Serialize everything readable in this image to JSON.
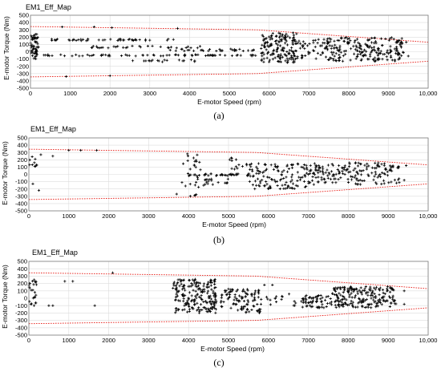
{
  "chart_data": [
    {
      "type": "scatter",
      "title": "EM1_Eff_Map",
      "caption": "(a)",
      "xlabel": "E-motor Speed (rpm)",
      "ylabel": "E-motor Torque (Nm)",
      "xlim": [
        0,
        10000
      ],
      "ylim": [
        -500,
        500
      ],
      "x_ticks": [
        "0",
        "1000",
        "2000",
        "3000",
        "4000",
        "5000",
        "6000",
        "7000",
        "8000",
        "9000",
        "10,000"
      ],
      "y_ticks": [
        "500",
        "400",
        "300",
        "200",
        "100",
        "0",
        "-100",
        "-200",
        "-300",
        "-400",
        "-500"
      ],
      "grid": true,
      "boundary": {
        "x": [
          0,
          5700,
          10000
        ],
        "upper": [
          345,
          300,
          130
        ],
        "lower": [
          -345,
          -300,
          -130
        ],
        "color": "#e8201a"
      },
      "clusters": [
        {
          "x": [
            0,
            200
          ],
          "y": [
            -100,
            240
          ],
          "n": 60
        },
        {
          "x": [
            200,
            3700
          ],
          "y": [
            150,
            175
          ],
          "n": 45
        },
        {
          "x": [
            200,
            5700
          ],
          "y": [
            -60,
            -40
          ],
          "n": 70
        },
        {
          "x": [
            1500,
            4500
          ],
          "y": [
            50,
            80
          ],
          "n": 30
        },
        {
          "x": [
            2300,
            4200
          ],
          "y": [
            -140,
            -110
          ],
          "n": 18
        },
        {
          "x": [
            3500,
            5700
          ],
          "y": [
            10,
            40
          ],
          "n": 30
        },
        {
          "x": [
            5800,
            6700
          ],
          "y": [
            -150,
            260
          ],
          "n": 160
        },
        {
          "x": [
            6700,
            7400
          ],
          "y": [
            -100,
            180
          ],
          "n": 40
        },
        {
          "x": [
            7400,
            9400
          ],
          "y": [
            -130,
            200
          ],
          "n": 220
        }
      ],
      "points": [
        [
          800,
          340
        ],
        [
          1600,
          340
        ],
        [
          2050,
          330
        ],
        [
          3700,
          320
        ],
        [
          900,
          -340
        ],
        [
          2000,
          -330
        ],
        [
          9450,
          130
        ],
        [
          9500,
          -60
        ]
      ]
    },
    {
      "type": "scatter",
      "title": "EM1_Eff_Map",
      "caption": "(b)",
      "xlabel": "E-motor Speed (rpm)",
      "ylabel": "E-motor Torque (Nm)",
      "xlim": [
        0,
        10000
      ],
      "ylim": [
        -500,
        500
      ],
      "x_ticks": [
        "0",
        "1000",
        "2000",
        "3000",
        "4000",
        "5000",
        "6000",
        "7000",
        "8000",
        "9000",
        "10,000"
      ],
      "y_ticks": [
        "500",
        "400",
        "300",
        "200",
        "100",
        "0",
        "-100",
        "-200",
        "-300",
        "-400",
        "-500"
      ],
      "grid": true,
      "boundary": {
        "x": [
          0,
          5700,
          10000
        ],
        "upper": [
          345,
          300,
          130
        ],
        "lower": [
          -345,
          -300,
          -130
        ],
        "color": "#e8201a"
      },
      "clusters": [
        {
          "x": [
            0,
            200
          ],
          "y": [
            100,
            260
          ],
          "n": 10
        },
        {
          "x": [
            3800,
            4300
          ],
          "y": [
            -300,
            340
          ],
          "n": 30
        },
        {
          "x": [
            4000,
            5500
          ],
          "y": [
            -20,
            10
          ],
          "n": 35
        },
        {
          "x": [
            4300,
            5000
          ],
          "y": [
            -150,
            -50
          ],
          "n": 18
        },
        {
          "x": [
            5000,
            5600
          ],
          "y": [
            60,
            250
          ],
          "n": 15
        },
        {
          "x": [
            5500,
            7000
          ],
          "y": [
            -200,
            150
          ],
          "n": 120
        },
        {
          "x": [
            7000,
            9300
          ],
          "y": [
            -140,
            160
          ],
          "n": 180
        }
      ],
      "points": [
        [
          300,
          270
        ],
        [
          600,
          250
        ],
        [
          1000,
          330
        ],
        [
          1300,
          330
        ],
        [
          1700,
          330
        ],
        [
          100,
          -130
        ],
        [
          250,
          -220
        ],
        [
          3700,
          -270
        ],
        [
          9450,
          120
        ],
        [
          9400,
          -80
        ]
      ]
    },
    {
      "type": "scatter",
      "title": "EM1_Eff_Map",
      "caption": "(c)",
      "xlabel": "E-motor Speed (rpm)",
      "ylabel": "E-motor Torque (Nm)",
      "xlim": [
        0,
        10000
      ],
      "ylim": [
        -500,
        500
      ],
      "x_ticks": [
        "0",
        "1000",
        "2000",
        "3000",
        "4000",
        "5000",
        "6000",
        "7000",
        "8000",
        "9000",
        "10,000"
      ],
      "y_ticks": [
        "500",
        "400",
        "300",
        "200",
        "100",
        "0",
        "-100",
        "-200",
        "-300",
        "-400",
        "-500"
      ],
      "grid": true,
      "boundary": {
        "x": [
          0,
          5700,
          10000
        ],
        "upper": [
          345,
          300,
          130
        ],
        "lower": [
          -345,
          -300,
          -130
        ],
        "color": "#e8201a"
      },
      "clusters": [
        {
          "x": [
            0,
            200
          ],
          "y": [
            -120,
            250
          ],
          "n": 25
        },
        {
          "x": [
            3600,
            4700
          ],
          "y": [
            -200,
            260
          ],
          "n": 200
        },
        {
          "x": [
            4800,
            5800
          ],
          "y": [
            -200,
            130
          ],
          "n": 100
        },
        {
          "x": [
            5800,
            6700
          ],
          "y": [
            -100,
            100
          ],
          "n": 18
        },
        {
          "x": [
            6800,
            7600
          ],
          "y": [
            -130,
            40
          ],
          "n": 60
        },
        {
          "x": [
            7600,
            9200
          ],
          "y": [
            -130,
            160
          ],
          "n": 200
        }
      ],
      "points": [
        [
          500,
          -100
        ],
        [
          600,
          -100
        ],
        [
          900,
          230
        ],
        [
          1100,
          230
        ],
        [
          1650,
          -100
        ],
        [
          2100,
          345
        ],
        [
          5900,
          180
        ],
        [
          6100,
          180
        ],
        [
          9400,
          100
        ],
        [
          9400,
          -80
        ]
      ]
    }
  ]
}
